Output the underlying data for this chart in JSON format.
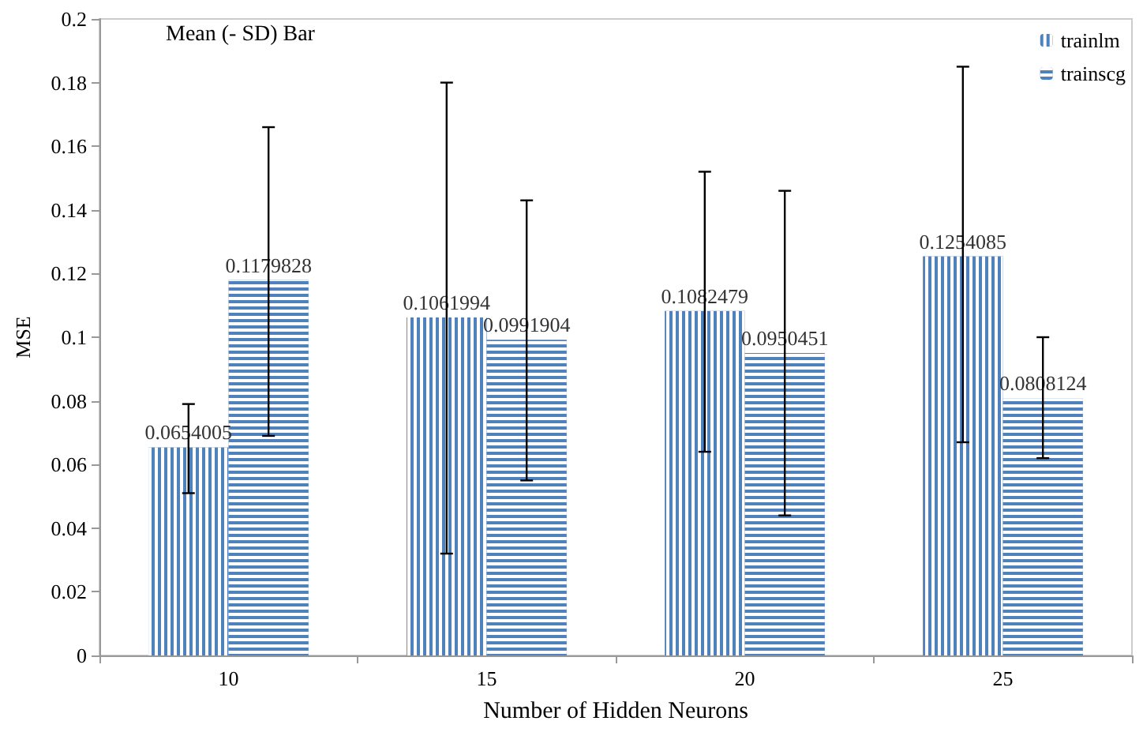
{
  "chart_data": {
    "type": "bar",
    "title": "Mean (- SD) Bar",
    "xlabel": "Number of Hidden Neurons",
    "ylabel": "MSE",
    "categories": [
      "10",
      "15",
      "20",
      "25"
    ],
    "series": [
      {
        "name": "trainlm",
        "color": "#4f81bd",
        "values": [
          0.0654005,
          0.1061994,
          0.1082479,
          0.1254085
        ],
        "errors": [
          [
            0.051,
            0.079
          ],
          [
            0.032,
            0.18
          ],
          [
            0.064,
            0.152
          ],
          [
            0.067,
            0.185
          ]
        ]
      },
      {
        "name": "trainscg",
        "color": "#4f81bd",
        "values": [
          0.1179828,
          0.0991904,
          0.0950451,
          0.0808124
        ],
        "errors": [
          [
            0.069,
            0.166
          ],
          [
            0.055,
            0.143
          ],
          [
            0.044,
            0.146
          ],
          [
            0.062,
            0.1
          ]
        ]
      }
    ],
    "ylim": [
      0,
      0.2
    ],
    "yticks": [
      0,
      0.02,
      0.04,
      0.06,
      0.08,
      0.1,
      0.12,
      0.14,
      0.16,
      0.18,
      0.2
    ],
    "data_labels": true,
    "grid": false,
    "legend": "top right"
  }
}
